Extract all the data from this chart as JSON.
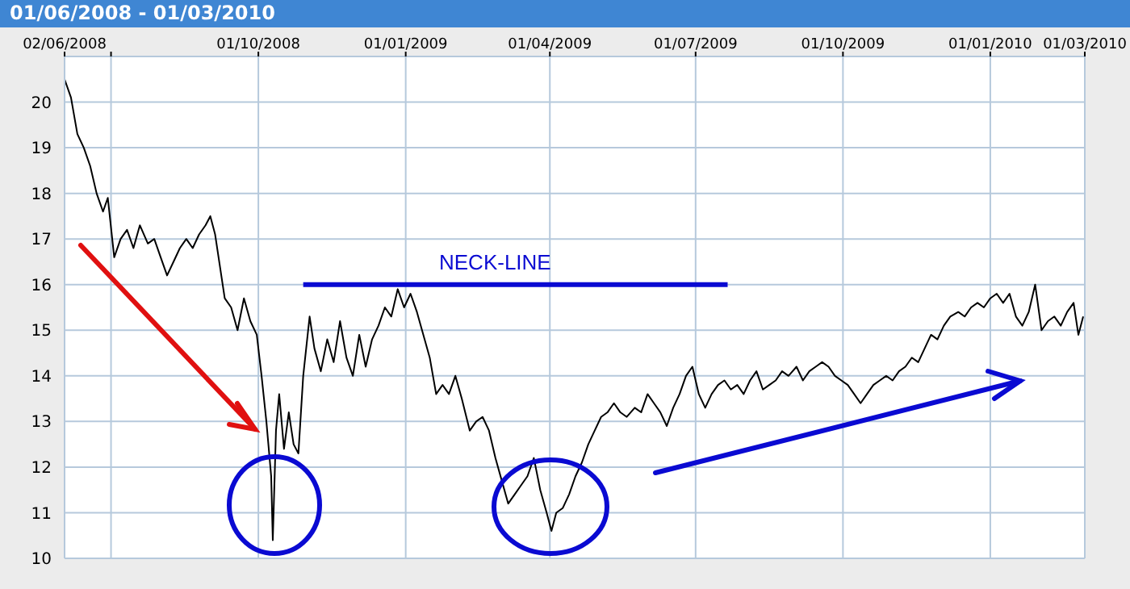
{
  "chart_data": {
    "type": "line",
    "title": "01/06/2008 - 01/03/2010",
    "xlim": [
      "2008-06-02",
      "2010-03-01"
    ],
    "xticks": [
      {
        "value": "2008-06-02",
        "label": "02/06/2008"
      },
      {
        "value": "2008-07-01",
        "label": null
      },
      {
        "value": "2008-10-01",
        "label": "01/10/2008"
      },
      {
        "value": "2009-01-01",
        "label": "01/01/2009"
      },
      {
        "value": "2009-04-01",
        "label": "01/04/2009"
      },
      {
        "value": "2009-07-01",
        "label": "01/07/2009"
      },
      {
        "value": "2009-10-01",
        "label": "01/10/2009"
      },
      {
        "value": "2010-01-01",
        "label": "01/01/2010"
      },
      {
        "value": "2010-03-01",
        "label": "01/03/2010"
      }
    ],
    "ylim": [
      10,
      21
    ],
    "yticks": [
      10,
      11,
      12,
      13,
      14,
      15,
      16,
      17,
      18,
      19,
      20
    ],
    "grid": true,
    "line_style": "solid",
    "annotations": [
      "NECK-LINE"
    ],
    "series": [
      {
        "color": "#000000",
        "x": [
          "2008-06-02",
          "2008-06-06",
          "2008-06-10",
          "2008-06-14",
          "2008-06-18",
          "2008-06-22",
          "2008-06-26",
          "2008-06-29",
          "2008-07-03",
          "2008-07-07",
          "2008-07-11",
          "2008-07-15",
          "2008-07-19",
          "2008-07-24",
          "2008-07-28",
          "2008-08-01",
          "2008-08-05",
          "2008-08-09",
          "2008-08-13",
          "2008-08-17",
          "2008-08-21",
          "2008-08-25",
          "2008-08-29",
          "2008-09-01",
          "2008-09-04",
          "2008-09-07",
          "2008-09-10",
          "2008-09-14",
          "2008-09-18",
          "2008-09-22",
          "2008-09-26",
          "2008-09-30",
          "2008-10-03",
          "2008-10-06",
          "2008-10-09",
          "2008-10-10",
          "2008-10-12",
          "2008-10-14",
          "2008-10-17",
          "2008-10-20",
          "2008-10-23",
          "2008-10-26",
          "2008-10-29",
          "2008-11-02",
          "2008-11-05",
          "2008-11-09",
          "2008-11-13",
          "2008-11-17",
          "2008-11-21",
          "2008-11-25",
          "2008-11-29",
          "2008-12-03",
          "2008-12-07",
          "2008-12-11",
          "2008-12-15",
          "2008-12-19",
          "2008-12-23",
          "2008-12-27",
          "2008-12-31",
          "2009-01-04",
          "2009-01-08",
          "2009-01-12",
          "2009-01-16",
          "2009-01-20",
          "2009-01-24",
          "2009-01-28",
          "2009-02-01",
          "2009-02-05",
          "2009-02-10",
          "2009-02-14",
          "2009-02-18",
          "2009-02-22",
          "2009-02-26",
          "2009-03-02",
          "2009-03-06",
          "2009-03-10",
          "2009-03-14",
          "2009-03-18",
          "2009-03-22",
          "2009-03-26",
          "2009-03-30",
          "2009-04-02",
          "2009-04-05",
          "2009-04-09",
          "2009-04-13",
          "2009-04-17",
          "2009-04-21",
          "2009-04-25",
          "2009-04-29",
          "2009-05-03",
          "2009-05-07",
          "2009-05-11",
          "2009-05-15",
          "2009-05-19",
          "2009-05-24",
          "2009-05-28",
          "2009-06-01",
          "2009-06-05",
          "2009-06-09",
          "2009-06-13",
          "2009-06-17",
          "2009-06-21",
          "2009-06-25",
          "2009-06-29",
          "2009-07-03",
          "2009-07-07",
          "2009-07-11",
          "2009-07-15",
          "2009-07-19",
          "2009-07-23",
          "2009-07-27",
          "2009-07-31",
          "2009-08-04",
          "2009-08-08",
          "2009-08-12",
          "2009-08-16",
          "2009-08-20",
          "2009-08-24",
          "2009-08-28",
          "2009-09-02",
          "2009-09-06",
          "2009-09-10",
          "2009-09-14",
          "2009-09-18",
          "2009-09-22",
          "2009-09-26",
          "2009-09-30",
          "2009-10-04",
          "2009-10-08",
          "2009-10-12",
          "2009-10-16",
          "2009-10-20",
          "2009-10-24",
          "2009-10-28",
          "2009-11-01",
          "2009-11-05",
          "2009-11-09",
          "2009-11-13",
          "2009-11-17",
          "2009-11-21",
          "2009-11-25",
          "2009-11-29",
          "2009-12-03",
          "2009-12-07",
          "2009-12-12",
          "2009-12-16",
          "2009-12-20",
          "2009-12-24",
          "2009-12-28",
          "2010-01-01",
          "2010-01-05",
          "2010-01-09",
          "2010-01-13",
          "2010-01-17",
          "2010-01-21",
          "2010-01-25",
          "2010-01-29",
          "2010-02-02",
          "2010-02-06",
          "2010-02-10",
          "2010-02-14",
          "2010-02-18",
          "2010-02-22",
          "2010-02-25",
          "2010-02-28"
        ],
        "values": [
          20.5,
          20.1,
          19.3,
          19.0,
          18.6,
          18.0,
          17.6,
          17.9,
          16.6,
          17.0,
          17.2,
          16.8,
          17.3,
          16.9,
          17.0,
          16.6,
          16.2,
          16.5,
          16.8,
          17.0,
          16.8,
          17.1,
          17.3,
          17.5,
          17.1,
          16.4,
          15.7,
          15.5,
          15.0,
          15.7,
          15.2,
          14.9,
          14.0,
          13.0,
          11.8,
          10.4,
          12.8,
          13.6,
          12.4,
          13.2,
          12.5,
          12.3,
          14.0,
          15.3,
          14.6,
          14.1,
          14.8,
          14.3,
          15.2,
          14.4,
          14.0,
          14.9,
          14.2,
          14.8,
          15.1,
          15.5,
          15.3,
          15.9,
          15.5,
          15.8,
          15.4,
          14.9,
          14.4,
          13.6,
          13.8,
          13.6,
          14.0,
          13.5,
          12.8,
          13.0,
          13.1,
          12.8,
          12.2,
          11.7,
          11.2,
          11.4,
          11.6,
          11.8,
          12.2,
          11.5,
          11.0,
          10.6,
          11.0,
          11.1,
          11.4,
          11.8,
          12.1,
          12.5,
          12.8,
          13.1,
          13.2,
          13.4,
          13.2,
          13.1,
          13.3,
          13.2,
          13.6,
          13.4,
          13.2,
          12.9,
          13.3,
          13.6,
          14.0,
          14.2,
          13.6,
          13.3,
          13.6,
          13.8,
          13.9,
          13.7,
          13.8,
          13.6,
          13.9,
          14.1,
          13.7,
          13.8,
          13.9,
          14.1,
          14.0,
          14.2,
          13.9,
          14.1,
          14.2,
          14.3,
          14.2,
          14.0,
          13.9,
          13.8,
          13.6,
          13.4,
          13.6,
          13.8,
          13.9,
          14.0,
          13.9,
          14.1,
          14.2,
          14.4,
          14.3,
          14.6,
          14.9,
          14.8,
          15.1,
          15.3,
          15.4,
          15.3,
          15.5,
          15.6,
          15.5,
          15.7,
          15.8,
          15.6,
          15.8,
          15.3,
          15.1,
          15.4,
          16.0,
          15.0,
          15.2,
          15.3,
          15.1,
          15.4,
          15.6,
          14.9,
          15.3
        ]
      },
      {
        "type": "line",
        "color": "#0a0ad2",
        "x": [
          "2008-10-29",
          "2009-07-21"
        ],
        "values": [
          16,
          16
        ]
      }
    ]
  }
}
